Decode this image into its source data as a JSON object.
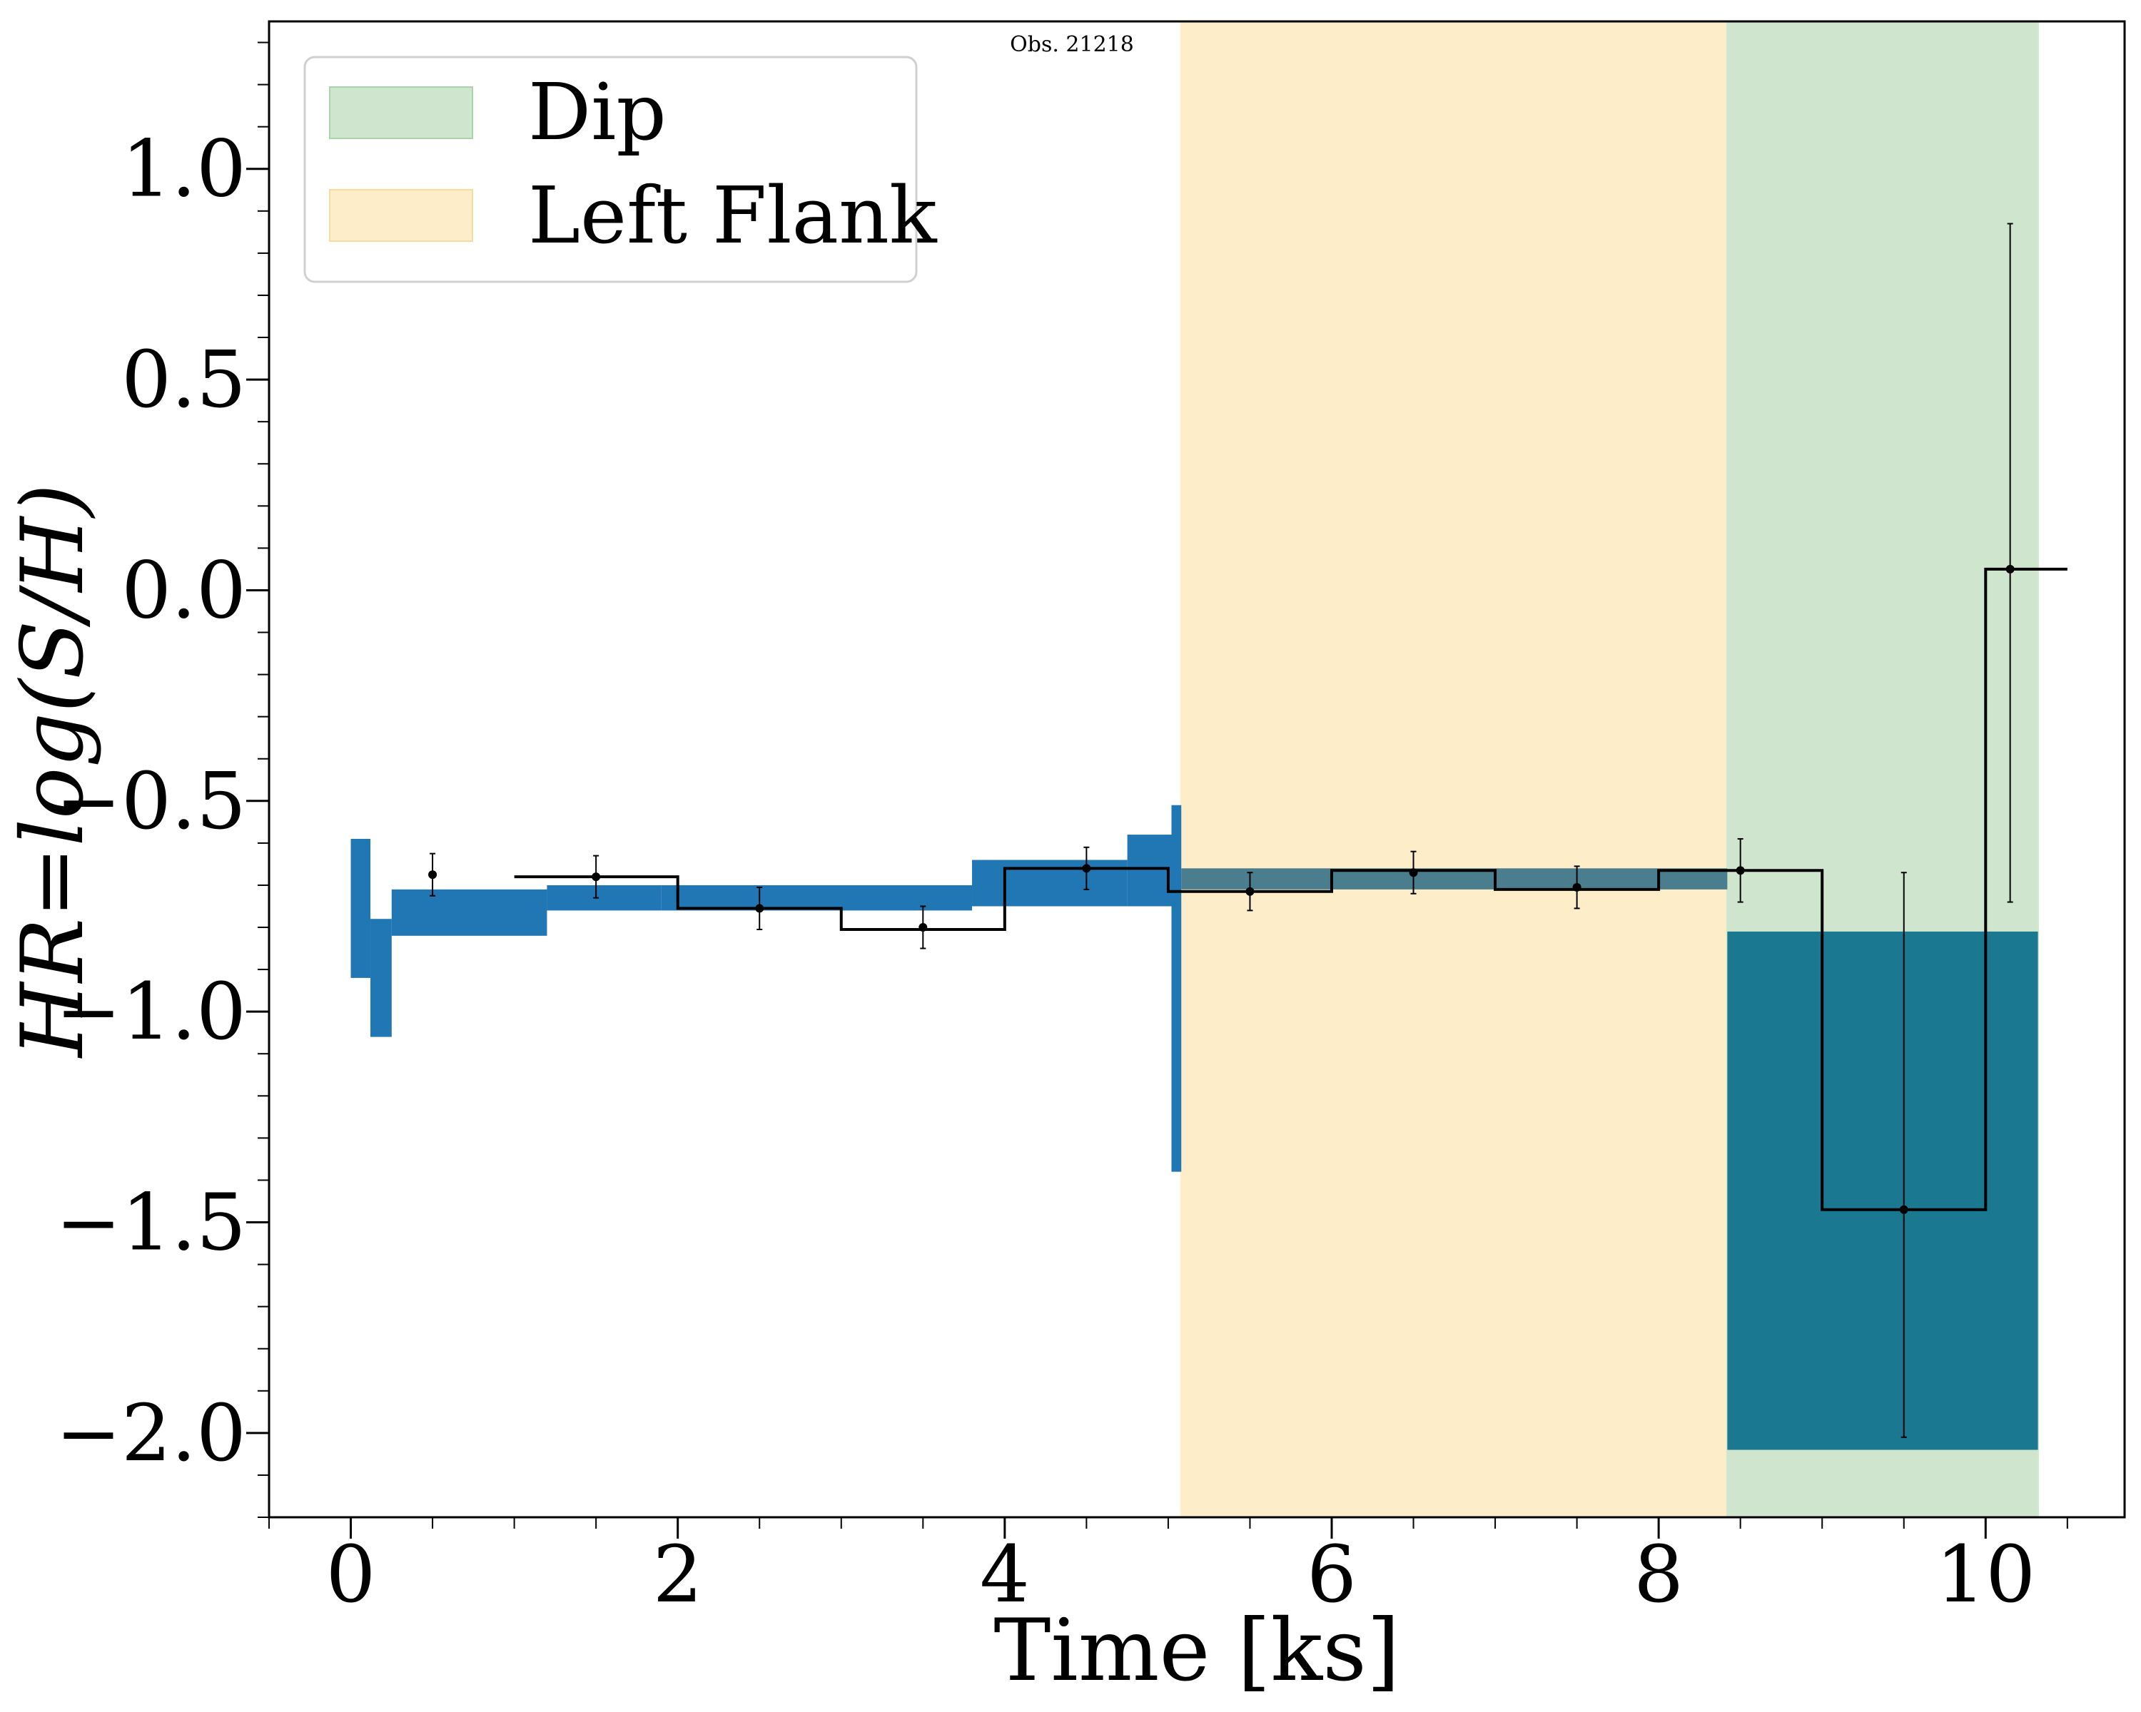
{
  "chart_data": {
    "type": "step",
    "title": "Obs. 21218",
    "xlabel": "Time [ks]",
    "ylabel": "HR=log(S/H)",
    "xlim": [
      -0.5,
      10.85
    ],
    "ylim": [
      -2.2,
      1.35
    ],
    "x_ticks": [
      0,
      2,
      4,
      6,
      8,
      10
    ],
    "x_tick_labels": [
      "0",
      "2",
      "4",
      "6",
      "8",
      "10"
    ],
    "y_ticks": [
      1.0,
      0.5,
      0.0,
      -0.5,
      -1.0,
      -1.5,
      -2.0
    ],
    "y_tick_labels": [
      "1.0",
      "0.5",
      "0.0",
      "−0.5",
      "−1.0",
      "−1.5",
      "−2.0"
    ],
    "colors": {
      "dip": "#cfe5ce",
      "left_flank": "#feedc9",
      "band": "#2177b4",
      "band_overlap_flank": "#4a7d8e",
      "band_overlap_dip": "#1a7891",
      "step": "#000000"
    },
    "regions": [
      {
        "name": "Left Flank",
        "x_start": 5.08,
        "x_end": 8.42
      },
      {
        "name": "Dip",
        "x_start": 8.42,
        "x_end": 10.32
      }
    ],
    "legend": {
      "position": "upper-left",
      "entries": [
        {
          "label": "Dip",
          "color": "#cfe5ce"
        },
        {
          "label": "Left Flank",
          "color": "#feedc9"
        }
      ]
    },
    "bands": [
      {
        "x0": 0.0,
        "x1": 0.12,
        "y_low": -0.92,
        "y_high": -0.59
      },
      {
        "x0": 0.12,
        "x1": 0.25,
        "y_low": -1.06,
        "y_high": -0.78
      },
      {
        "x0": 0.25,
        "x1": 1.2,
        "y_low": -0.82,
        "y_high": -0.71
      },
      {
        "x0": 1.2,
        "x1": 1.9,
        "y_low": -0.76,
        "y_high": -0.7
      },
      {
        "x0": 1.9,
        "x1": 3.8,
        "y_low": -0.76,
        "y_high": -0.7
      },
      {
        "x0": 3.8,
        "x1": 4.75,
        "y_low": -0.75,
        "y_high": -0.64
      },
      {
        "x0": 4.75,
        "x1": 5.02,
        "y_low": -0.75,
        "y_high": -0.58
      },
      {
        "x0": 5.02,
        "x1": 5.08,
        "y_low": -1.38,
        "y_high": -0.51
      },
      {
        "x0": 5.08,
        "x1": 8.42,
        "y_low": -0.71,
        "y_high": -0.66
      },
      {
        "x0": 8.42,
        "x1": 10.32,
        "y_low": -2.04,
        "y_high": -0.81
      }
    ],
    "step_segments": [
      {
        "x0": 1.0,
        "x1": 2.0,
        "y": -0.68
      },
      {
        "x0": 2.0,
        "x1": 3.0,
        "y": -0.755
      },
      {
        "x0": 3.0,
        "x1": 4.0,
        "y": -0.805
      },
      {
        "x0": 4.0,
        "x1": 5.0,
        "y": -0.66
      },
      {
        "x0": 5.0,
        "x1": 6.0,
        "y": -0.715
      },
      {
        "x0": 6.0,
        "x1": 7.0,
        "y": -0.665
      },
      {
        "x0": 7.0,
        "x1": 8.0,
        "y": -0.71
      },
      {
        "x0": 8.0,
        "x1": 9.0,
        "y": -0.665
      },
      {
        "x0": 9.0,
        "x1": 10.0,
        "y": -1.47
      },
      {
        "x0": 10.0,
        "x1": 10.5,
        "y": 0.05
      }
    ],
    "points": [
      {
        "x": 0.5,
        "y": -0.675,
        "err_low": 0.05,
        "err_high": 0.05
      },
      {
        "x": 1.5,
        "y": -0.68,
        "err_low": 0.05,
        "err_high": 0.05
      },
      {
        "x": 2.5,
        "y": -0.755,
        "err_low": 0.05,
        "err_high": 0.05
      },
      {
        "x": 3.5,
        "y": -0.8,
        "err_low": 0.05,
        "err_high": 0.05
      },
      {
        "x": 4.5,
        "y": -0.66,
        "err_low": 0.05,
        "err_high": 0.05
      },
      {
        "x": 5.5,
        "y": -0.715,
        "err_low": 0.045,
        "err_high": 0.045
      },
      {
        "x": 6.5,
        "y": -0.67,
        "err_low": 0.05,
        "err_high": 0.05
      },
      {
        "x": 7.5,
        "y": -0.705,
        "err_low": 0.05,
        "err_high": 0.05
      },
      {
        "x": 8.5,
        "y": -0.665,
        "err_low": 0.075,
        "err_high": 0.075
      },
      {
        "x": 9.5,
        "y": -1.47,
        "err_low": 0.54,
        "err_high": 0.8
      },
      {
        "x": 10.15,
        "y": 0.05,
        "err_low": 0.79,
        "err_high": 0.82
      }
    ]
  }
}
